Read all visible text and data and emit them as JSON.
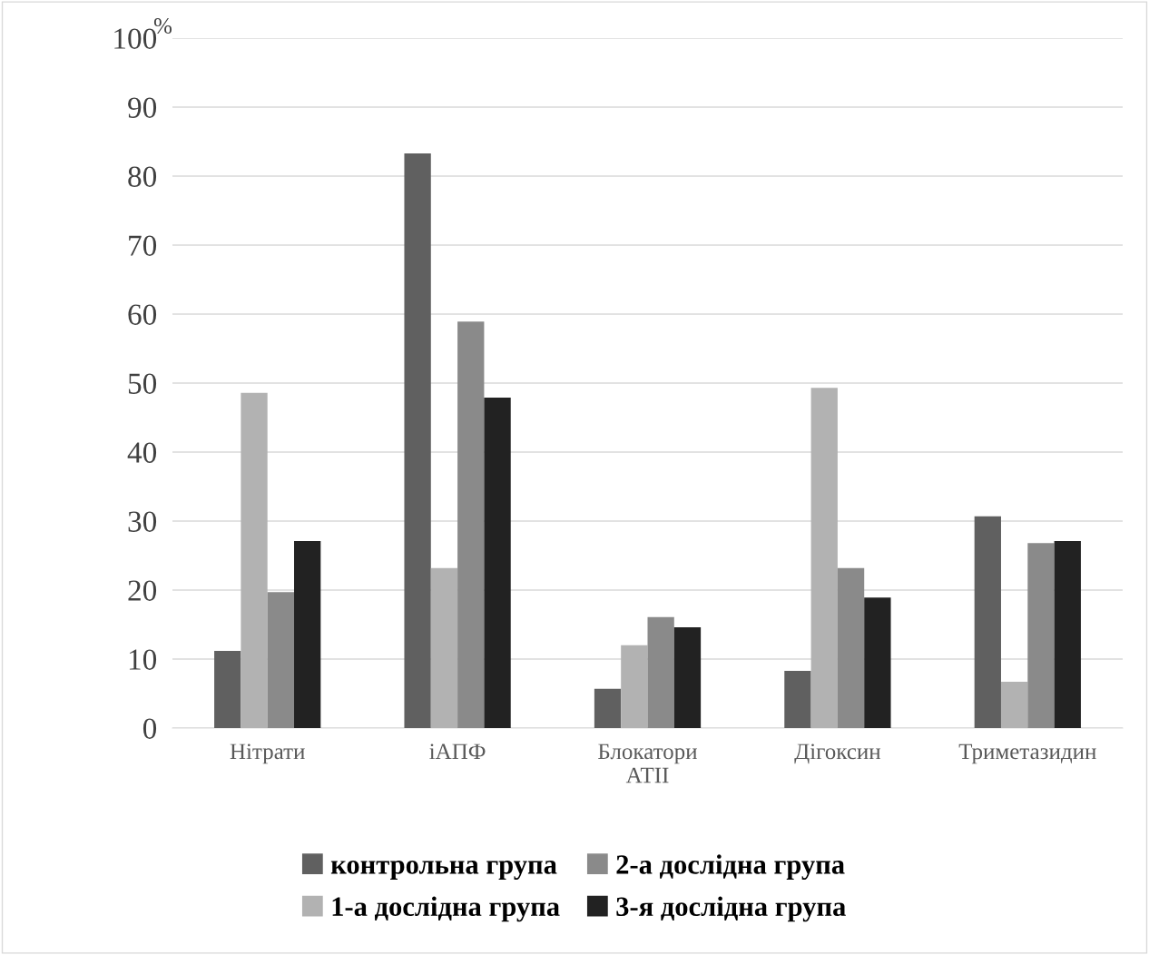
{
  "chart_data": {
    "type": "bar",
    "ylabel": "%",
    "categories": [
      "Нітрати",
      "іАПФ",
      "Блокатори\nАТІІ",
      "Дігоксин",
      "Триметазидин"
    ],
    "series": [
      {
        "name": "контрольна група",
        "color": "#606060",
        "values": [
          11.2,
          83.3,
          5.7,
          8.3,
          30.7
        ]
      },
      {
        "name": "1-а дослідна група",
        "color": "#b2b2b2",
        "values": [
          48.6,
          23.2,
          12.0,
          49.3,
          6.7
        ]
      },
      {
        "name": "2-а дослідна група",
        "color": "#8a8a8a",
        "values": [
          19.7,
          58.9,
          16.1,
          23.2,
          26.8
        ]
      },
      {
        "name": "3-я дослідна група",
        "color": "#222222",
        "values": [
          27.1,
          47.9,
          14.6,
          18.9,
          27.1
        ]
      }
    ],
    "ylim": [
      0,
      100
    ],
    "yticks": [
      0,
      10,
      20,
      30,
      40,
      50,
      60,
      70,
      80,
      90,
      100
    ],
    "grid": "y",
    "legend": "bottom"
  }
}
